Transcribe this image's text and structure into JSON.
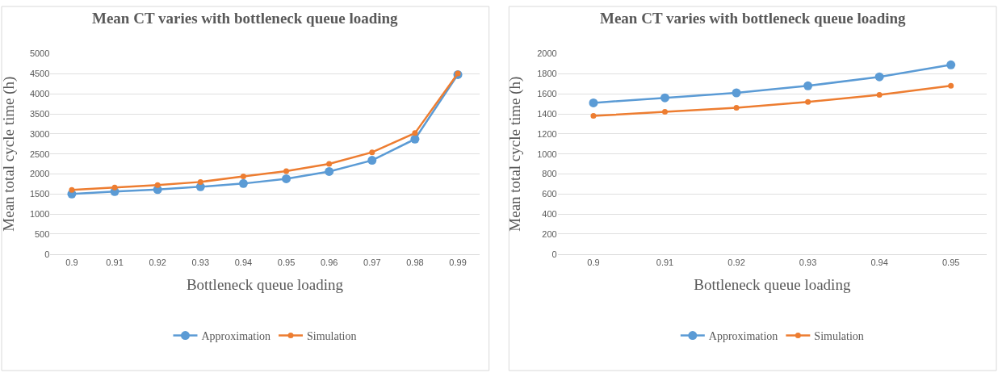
{
  "chart_data": [
    {
      "type": "line",
      "title": "Mean CT varies with bottleneck queue loading",
      "xlabel": "Bottleneck queue loading",
      "ylabel": "Mean total cycle time (h)",
      "categories": [
        "0.9",
        "0.91",
        "0.92",
        "0.93",
        "0.94",
        "0.95",
        "0.96",
        "0.97",
        "0.98",
        "0.99"
      ],
      "series": [
        {
          "name": "Approximation",
          "color": "#5b9bd5",
          "values": [
            1500,
            1560,
            1610,
            1680,
            1760,
            1880,
            2060,
            2340,
            2870,
            4480
          ]
        },
        {
          "name": "Simulation",
          "color": "#ed7d31",
          "values": [
            1600,
            1660,
            1720,
            1800,
            1940,
            2070,
            2250,
            2540,
            3020,
            4510
          ]
        }
      ],
      "ylim": [
        0,
        5000
      ],
      "yticks": [
        0,
        500,
        1000,
        1500,
        2000,
        2500,
        3000,
        3500,
        4000,
        4500,
        5000
      ],
      "grid": "y",
      "legend": "bottom",
      "marker": "circle",
      "line_style": "solid"
    },
    {
      "type": "line",
      "title": "Mean CT varies with bottleneck queue loading",
      "xlabel": "Bottleneck queue loading",
      "ylabel": "Mean total cycle time (h)",
      "categories": [
        "0.9",
        "0.91",
        "0.92",
        "0.93",
        "0.94",
        "0.95"
      ],
      "series": [
        {
          "name": "Approximation",
          "color": "#5b9bd5",
          "values": [
            1510,
            1560,
            1610,
            1680,
            1770,
            1890
          ]
        },
        {
          "name": "Simulation",
          "color": "#ed7d31",
          "values": [
            1380,
            1420,
            1460,
            1520,
            1590,
            1680
          ]
        }
      ],
      "ylim": [
        0,
        2000
      ],
      "yticks": [
        0,
        200,
        400,
        600,
        800,
        1000,
        1200,
        1400,
        1600,
        1800,
        2000
      ],
      "grid": "y",
      "legend": "bottom",
      "marker": "circle",
      "line_style": "solid"
    }
  ]
}
